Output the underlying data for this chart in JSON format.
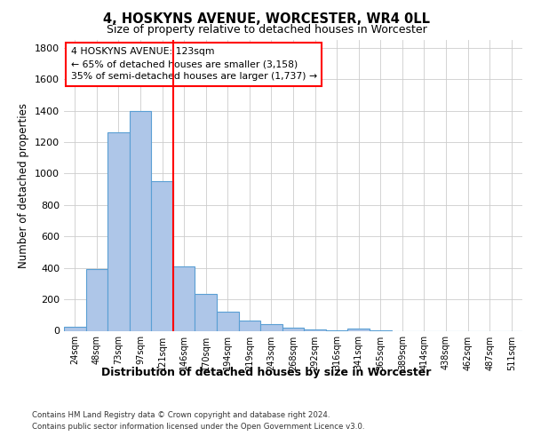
{
  "title_line1": "4, HOSKYNS AVENUE, WORCESTER, WR4 0LL",
  "title_line2": "Size of property relative to detached houses in Worcester",
  "xlabel": "Distribution of detached houses by size in Worcester",
  "ylabel": "Number of detached properties",
  "bar_labels": [
    "24sqm",
    "48sqm",
    "73sqm",
    "97sqm",
    "121sqm",
    "146sqm",
    "170sqm",
    "194sqm",
    "219sqm",
    "243sqm",
    "268sqm",
    "292sqm",
    "316sqm",
    "341sqm",
    "365sqm",
    "389sqm",
    "414sqm",
    "438sqm",
    "462sqm",
    "487sqm",
    "511sqm"
  ],
  "bar_values": [
    25,
    390,
    1260,
    1400,
    950,
    410,
    235,
    120,
    65,
    40,
    20,
    10,
    5,
    15,
    5,
    0,
    0,
    0,
    0,
    0,
    0
  ],
  "bar_color": "#aec6e8",
  "bar_edge_color": "#5a9fd4",
  "ylim": [
    0,
    1850
  ],
  "yticks": [
    0,
    200,
    400,
    600,
    800,
    1000,
    1200,
    1400,
    1600,
    1800
  ],
  "vline_pos": 4.5,
  "annotation_title": "4 HOSKYNS AVENUE: 123sqm",
  "annotation_line2": "← 65% of detached houses are smaller (3,158)",
  "annotation_line3": "35% of semi-detached houses are larger (1,737) →",
  "footer_line1": "Contains HM Land Registry data © Crown copyright and database right 2024.",
  "footer_line2": "Contains public sector information licensed under the Open Government Licence v3.0.",
  "background_color": "#ffffff",
  "grid_color": "#cccccc"
}
